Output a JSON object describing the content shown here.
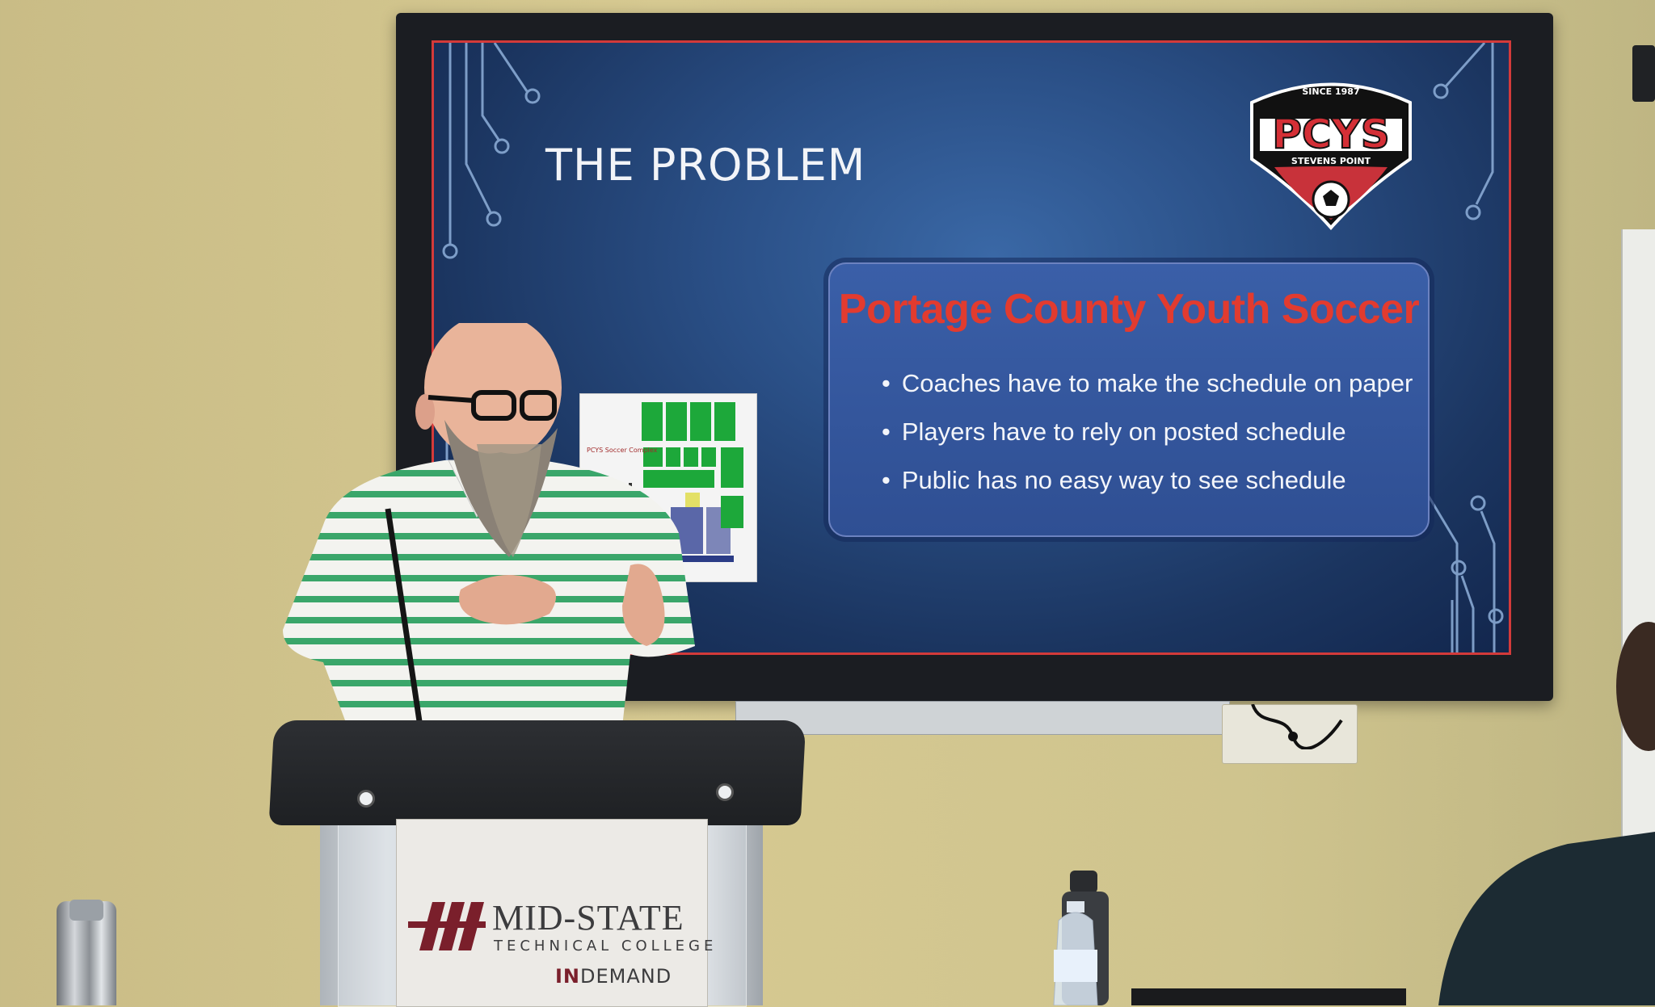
{
  "slide": {
    "title": "THE PROBLEM",
    "logo": {
      "top_text": "SINCE 1987",
      "main_text": "PCYS",
      "bottom_text": "STEVENS POINT"
    },
    "info_box": {
      "heading": "Portage County Youth Soccer",
      "bullets": [
        "Coaches have to make the schedule on paper",
        "Players have to rely on posted schedule",
        "Public has no easy way to see schedule"
      ]
    },
    "map_thumbnail": {
      "title": "PCYS Soccer Complex"
    }
  },
  "podium_sign": {
    "name": "MID-STATE",
    "subtitle": "TECHNICAL COLLEGE",
    "tagline_accent": "IN",
    "tagline_rest": "DEMAND"
  },
  "colors": {
    "slide_background": "#2a4f86",
    "slide_border": "#d33a3a",
    "heading_red": "#e23b2f",
    "box_blue": "#3a5fa8",
    "wall": "#d6c991",
    "college_maroon": "#7a1f2b"
  }
}
